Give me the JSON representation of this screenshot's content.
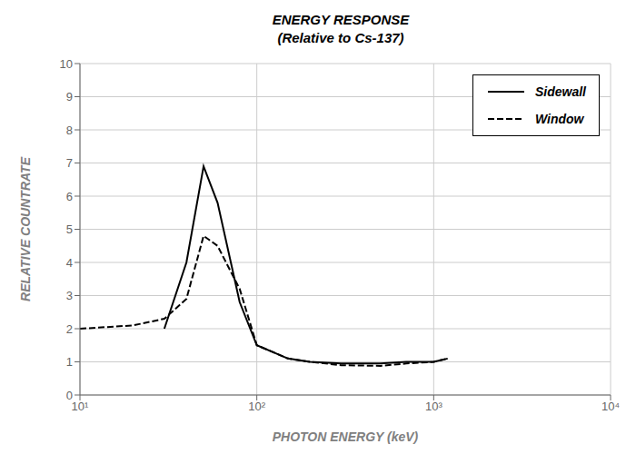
{
  "chart_data": {
    "type": "line",
    "title": "ENERGY RESPONSE",
    "subtitle": "(Relative to Cs-137)",
    "x_label": "PHOTON ENERGY (keV)",
    "y_label": "RELATIVE COUNTRATE",
    "log": "x",
    "xlim": [
      10,
      10000
    ],
    "ylim": [
      0,
      10
    ],
    "xticks": [
      {
        "value": 10,
        "label": "10¹"
      },
      {
        "value": 100,
        "label": "10²"
      },
      {
        "value": 1000,
        "label": "10³"
      },
      {
        "value": 10000,
        "label": "10⁴"
      }
    ],
    "yticks": [
      0,
      1,
      2,
      3,
      4,
      5,
      6,
      7,
      8,
      9,
      10
    ],
    "grid": true,
    "legend": "upper right",
    "series": [
      {
        "name": "Sidewall",
        "color": "#000000",
        "line_style": "solid",
        "x": [
          30,
          40,
          50,
          60,
          80,
          100,
          150,
          200,
          300,
          500,
          700,
          1000,
          1200
        ],
        "values": [
          2.0,
          4.0,
          6.9,
          5.8,
          2.8,
          1.5,
          1.1,
          1.0,
          0.95,
          0.95,
          1.0,
          1.0,
          1.1
        ]
      },
      {
        "name": "Window",
        "color": "#000000",
        "line_style": "dashed",
        "x": [
          10,
          20,
          30,
          40,
          50,
          60,
          70,
          80,
          100,
          150,
          200,
          300,
          500,
          700,
          1000,
          1200
        ],
        "values": [
          2.0,
          2.1,
          2.3,
          2.9,
          4.8,
          4.5,
          3.8,
          3.2,
          1.5,
          1.1,
          1.0,
          0.9,
          0.88,
          0.95,
          1.0,
          1.1
        ]
      }
    ]
  }
}
